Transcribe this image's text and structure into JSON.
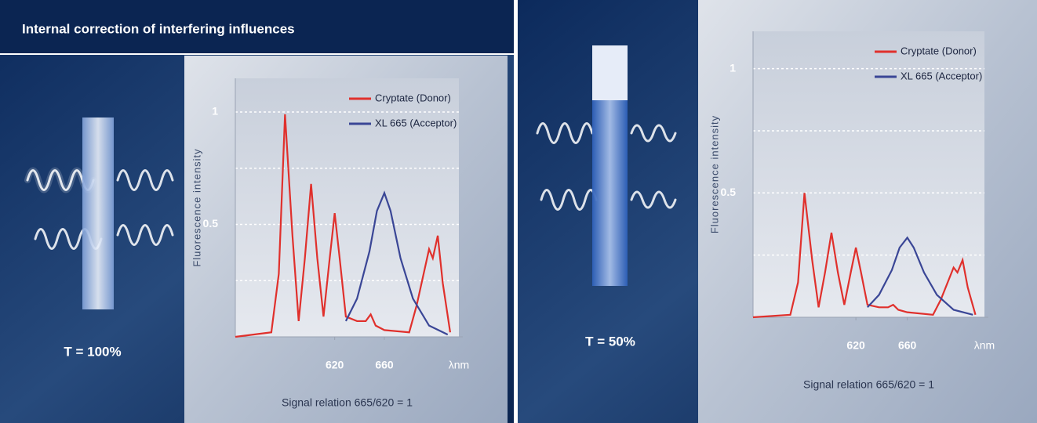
{
  "header": {
    "title": "Internal correction of interfering influences"
  },
  "panels": [
    {
      "label": "T = 100%"
    },
    {
      "label": "T = 50%"
    }
  ],
  "chart_data": [
    {
      "type": "line",
      "ylabel": "Fluorescence intensity",
      "xlabel": "λnm",
      "caption": "Signal relation 665/620 = 1",
      "xlim": [
        540,
        720
      ],
      "ylim": [
        0,
        1.15
      ],
      "xticks": [
        620,
        660
      ],
      "yticks": [
        0.5,
        1
      ],
      "gridlines": [
        0.25,
        0.5,
        0.75,
        1
      ],
      "legend": "upper right",
      "series": [
        {
          "name": "Cryptate (Donor)",
          "color": "#e0302c",
          "x": [
            540,
            569,
            575,
            580,
            586,
            591,
            596,
            601,
            606,
            611,
            616,
            620,
            624,
            629,
            638,
            645,
            649,
            653,
            660,
            680,
            686,
            696,
            699,
            703,
            707,
            713
          ],
          "values": [
            0,
            0.02,
            0.28,
            0.99,
            0.45,
            0.07,
            0.35,
            0.68,
            0.35,
            0.09,
            0.35,
            0.55,
            0.35,
            0.09,
            0.07,
            0.07,
            0.1,
            0.05,
            0.03,
            0.02,
            0.14,
            0.39,
            0.35,
            0.45,
            0.24,
            0.02
          ]
        },
        {
          "name": "XL 665 (Acceptor)",
          "color": "#3a4696",
          "x": [
            629,
            638,
            648,
            654,
            660,
            665,
            673,
            683,
            696,
            711
          ],
          "values": [
            0.07,
            0.17,
            0.38,
            0.56,
            0.64,
            0.56,
            0.35,
            0.17,
            0.05,
            0.01
          ]
        }
      ]
    },
    {
      "type": "line",
      "ylabel": "Fluorescence intensity",
      "xlabel": "λnm",
      "caption": "Signal relation 665/620 = 1",
      "xlim": [
        540,
        720
      ],
      "ylim": [
        0,
        1.15
      ],
      "xticks": [
        620,
        660
      ],
      "yticks": [
        0.5,
        1
      ],
      "gridlines": [
        0.25,
        0.5,
        0.75,
        1
      ],
      "legend": "upper right",
      "series": [
        {
          "name": "Cryptate (Donor)",
          "color": "#e0302c",
          "x": [
            540,
            569,
            575,
            580,
            586,
            591,
            596,
            601,
            606,
            611,
            616,
            620,
            624,
            629,
            638,
            645,
            649,
            653,
            660,
            680,
            686,
            696,
            699,
            703,
            707,
            713
          ],
          "values": [
            0,
            0.01,
            0.14,
            0.5,
            0.23,
            0.04,
            0.18,
            0.34,
            0.18,
            0.05,
            0.18,
            0.28,
            0.18,
            0.05,
            0.04,
            0.04,
            0.05,
            0.03,
            0.02,
            0.01,
            0.07,
            0.2,
            0.18,
            0.23,
            0.12,
            0.01
          ]
        },
        {
          "name": "XL 665 (Acceptor)",
          "color": "#3a4696",
          "x": [
            629,
            638,
            648,
            654,
            660,
            665,
            673,
            683,
            696,
            711
          ],
          "values": [
            0.04,
            0.09,
            0.19,
            0.28,
            0.32,
            0.28,
            0.18,
            0.09,
            0.03,
            0.01
          ]
        }
      ]
    }
  ]
}
